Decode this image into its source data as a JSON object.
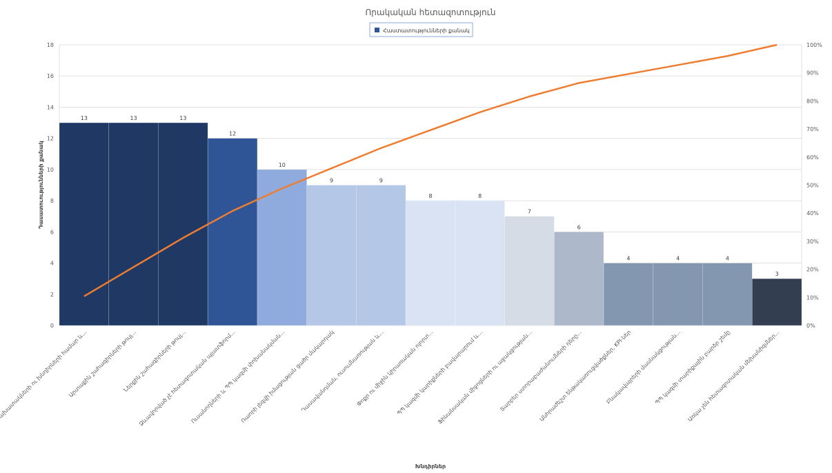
{
  "chart_data": {
    "type": "bar",
    "title": "Որակական հետազոտություն",
    "xlabel": "Խնդիրներ",
    "ylabel": "Դասատուությունների քանակ",
    "legend": {
      "label": "Հաստատությունների քանակ",
      "position": "top"
    },
    "categories": [
      "ՌՕ նախատակների ու խնդիրների համար և...",
      "Արտաքին շահագիրների թույլ...",
      "Ներքին շահագիրների թույլ...",
      "Ձևավորված չէ հետազոտական պլատֆորմ...",
      "Ուսանողների և ՊՊ կազմի փոխանակման...",
      "Ռաորի լեզվի իմացության ցածր մակարդակ",
      "Դասավանդման, ուսումնառության և...",
      "Փոքր ու միջին կիրառական ոլորտ...",
      "ՊՊ կազմի կարիքների բավարարում և...",
      "Ֆինանսական միջոցների ու աջակցության...",
      "Տարբեր ստորաբաժանումների դերը...",
      "Անհրաժեշտ ենթակառուցվածքներ, KPI-ներ",
      "Բնակավայրերի մասնակցության...",
      "ՊՊ կազմի տարիքային բարձր շեմը",
      "Առկա չեն հետազոտական մեխանիզմներ..."
    ],
    "values": [
      13,
      13,
      13,
      12,
      10,
      9,
      9,
      8,
      8,
      7,
      6,
      4,
      4,
      4,
      3
    ],
    "bar_colors": [
      "#1f3864",
      "#1f3864",
      "#1f3864",
      "#2f5597",
      "#8faadc",
      "#b4c7e7",
      "#b4c7e7",
      "#dae3f3",
      "#dae3f3",
      "#d6dce5",
      "#adb9ca",
      "#8497b0",
      "#8497b0",
      "#8497b0",
      "#333f50"
    ],
    "cumulative_series": {
      "color": "#ed7d31",
      "values_percent": [
        10.4,
        20.8,
        31.2,
        40.8,
        48.8,
        56.0,
        63.2,
        69.6,
        76.0,
        81.6,
        86.4,
        89.6,
        92.8,
        96.0,
        100.0
      ]
    },
    "ylim": [
      0,
      18
    ],
    "y_ticks": [
      "0",
      "2",
      "4",
      "6",
      "8",
      "10",
      "12",
      "14",
      "16",
      "18"
    ],
    "y2_ticks": [
      "0%",
      "10%",
      "20%",
      "30%",
      "40%",
      "50%",
      "60%",
      "70%",
      "80%",
      "90%",
      "100%"
    ],
    "grid": true
  }
}
